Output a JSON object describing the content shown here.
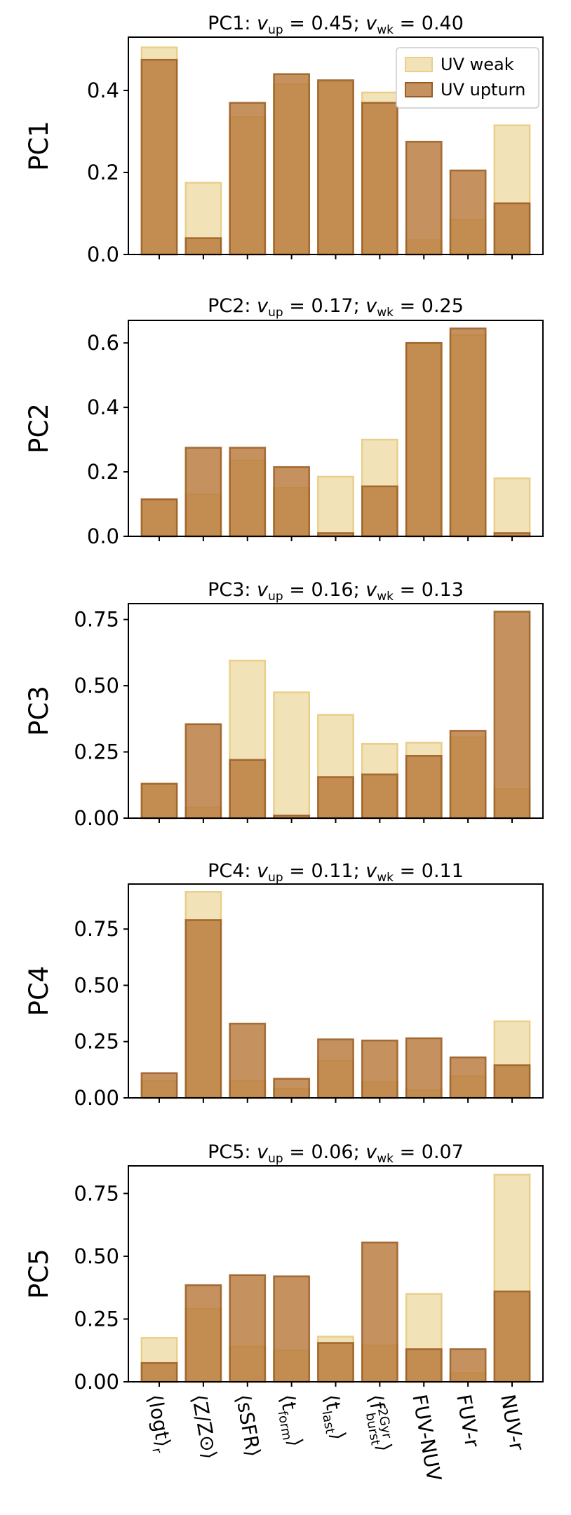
{
  "figure": {
    "colors": {
      "weak_fill": "#f2e2b8",
      "weak_stroke": "#e9cf8a",
      "upturn_fill": "#b87a3c",
      "upturn_stroke": "#9a5c22",
      "axis": "#000000"
    },
    "legend_location": "top-right"
  },
  "chart_data": [
    {
      "type": "bar",
      "title": "PC1: v_up = 0.45; v_wk = 0.40",
      "title_parts": {
        "label": "PC1:",
        "v_up": "0.45",
        "v_wk": "0.40"
      },
      "ylabel": "PC1",
      "ylim": [
        0,
        0.53
      ],
      "yticks": [
        0.0,
        0.2,
        0.4
      ],
      "ytick_labels": [
        "0.0",
        "0.2",
        "0.4"
      ],
      "legend": [
        "UV weak",
        "UV upturn"
      ],
      "categories": [
        "⟨logt⟩_r",
        "⟨Z/Z⊙⟩",
        "⟨sSFR⟩",
        "⟨t_form⟩",
        "⟨t_last⟩",
        "⟨f_burst^2Gyr⟩",
        "FUV-NUV",
        "FUV-r",
        "NUV-r"
      ],
      "series": [
        {
          "name": "UV weak",
          "values": [
            0.505,
            0.175,
            0.335,
            0.415,
            0.42,
            0.395,
            0.035,
            0.085,
            0.315
          ]
        },
        {
          "name": "UV upturn",
          "values": [
            0.475,
            0.04,
            0.37,
            0.44,
            0.425,
            0.37,
            0.275,
            0.205,
            0.125
          ]
        }
      ]
    },
    {
      "type": "bar",
      "title": "PC2: v_up = 0.17; v_wk = 0.25",
      "title_parts": {
        "label": "PC2:",
        "v_up": "0.17",
        "v_wk": "0.25"
      },
      "ylabel": "PC2",
      "ylim": [
        0,
        0.67
      ],
      "yticks": [
        0.0,
        0.2,
        0.4,
        0.6
      ],
      "ytick_labels": [
        "0.0",
        "0.2",
        "0.4",
        "0.6"
      ],
      "categories": [
        "⟨logt⟩_r",
        "⟨Z/Z⊙⟩",
        "⟨sSFR⟩",
        "⟨t_form⟩",
        "⟨t_last⟩",
        "⟨f_burst^2Gyr⟩",
        "FUV-NUV",
        "FUV-r",
        "NUV-r"
      ],
      "series": [
        {
          "name": "UV weak",
          "values": [
            0.115,
            0.13,
            0.235,
            0.15,
            0.185,
            0.3,
            0.6,
            0.625,
            0.18
          ]
        },
        {
          "name": "UV upturn",
          "values": [
            0.115,
            0.275,
            0.275,
            0.215,
            0.01,
            0.155,
            0.6,
            0.645,
            0.01
          ]
        }
      ]
    },
    {
      "type": "bar",
      "title": "PC3: v_up = 0.16; v_wk = 0.13",
      "title_parts": {
        "label": "PC3:",
        "v_up": "0.16",
        "v_wk": "0.13"
      },
      "ylabel": "PC3",
      "ylim": [
        0,
        0.81
      ],
      "yticks": [
        0.0,
        0.25,
        0.5,
        0.75
      ],
      "ytick_labels": [
        "0.00",
        "0.25",
        "0.50",
        "0.75"
      ],
      "categories": [
        "⟨logt⟩_r",
        "⟨Z/Z⊙⟩",
        "⟨sSFR⟩",
        "⟨t_form⟩",
        "⟨t_last⟩",
        "⟨f_burst^2Gyr⟩",
        "FUV-NUV",
        "FUV-r",
        "NUV-r"
      ],
      "series": [
        {
          "name": "UV weak",
          "values": [
            0.13,
            0.04,
            0.595,
            0.475,
            0.39,
            0.28,
            0.285,
            0.305,
            0.11
          ]
        },
        {
          "name": "UV upturn",
          "values": [
            0.13,
            0.355,
            0.22,
            0.01,
            0.155,
            0.165,
            0.235,
            0.33,
            0.78
          ]
        }
      ]
    },
    {
      "type": "bar",
      "title": "PC4: v_up = 0.11; v_wk = 0.11",
      "title_parts": {
        "label": "PC4:",
        "v_up": "0.11",
        "v_wk": "0.11"
      },
      "ylabel": "PC4",
      "ylim": [
        0,
        0.95
      ],
      "yticks": [
        0.0,
        0.25,
        0.5,
        0.75
      ],
      "ytick_labels": [
        "0.00",
        "0.25",
        "0.50",
        "0.75"
      ],
      "categories": [
        "⟨logt⟩_r",
        "⟨Z/Z⊙⟩",
        "⟨sSFR⟩",
        "⟨t_form⟩",
        "⟨t_last⟩",
        "⟨f_burst^2Gyr⟩",
        "FUV-NUV",
        "FUV-r",
        "NUV-r"
      ],
      "series": [
        {
          "name": "UV weak",
          "values": [
            0.075,
            0.915,
            0.075,
            0.04,
            0.165,
            0.07,
            0.035,
            0.095,
            0.34
          ]
        },
        {
          "name": "UV upturn",
          "values": [
            0.11,
            0.79,
            0.33,
            0.085,
            0.26,
            0.255,
            0.265,
            0.18,
            0.145
          ]
        }
      ]
    },
    {
      "type": "bar",
      "title": "PC5: v_up = 0.06; v_wk = 0.07",
      "title_parts": {
        "label": "PC5:",
        "v_up": "0.06",
        "v_wk": "0.07"
      },
      "ylabel": "PC5",
      "ylim": [
        0,
        0.86
      ],
      "yticks": [
        0.0,
        0.25,
        0.5,
        0.75
      ],
      "ytick_labels": [
        "0.00",
        "0.25",
        "0.50",
        "0.75"
      ],
      "xlabel": "",
      "xtick_labels": [
        {
          "main": "⟨logt⟩",
          "sub": "r"
        },
        {
          "main": "⟨Z/Z⊙⟩"
        },
        {
          "main": "⟨sSFR⟩"
        },
        {
          "main": "⟨t",
          "sub": "form",
          "after": "⟩"
        },
        {
          "main": "⟨t",
          "sub": "last",
          "after": "⟩"
        },
        {
          "main": "⟨f",
          "sub": "burst",
          "sup": "2Gyr",
          "after": "⟩"
        },
        {
          "main": "FUV-NUV"
        },
        {
          "main": "FUV-r"
        },
        {
          "main": "NUV-r"
        }
      ],
      "categories": [
        "⟨logt⟩_r",
        "⟨Z/Z⊙⟩",
        "⟨sSFR⟩",
        "⟨t_form⟩",
        "⟨t_last⟩",
        "⟨f_burst^2Gyr⟩",
        "FUV-NUV",
        "FUV-r",
        "NUV-r"
      ],
      "series": [
        {
          "name": "UV weak",
          "values": [
            0.175,
            0.29,
            0.14,
            0.125,
            0.18,
            0.145,
            0.35,
            0.035,
            0.825
          ]
        },
        {
          "name": "UV upturn",
          "values": [
            0.075,
            0.385,
            0.425,
            0.42,
            0.155,
            0.555,
            0.13,
            0.13,
            0.36
          ]
        }
      ]
    }
  ]
}
